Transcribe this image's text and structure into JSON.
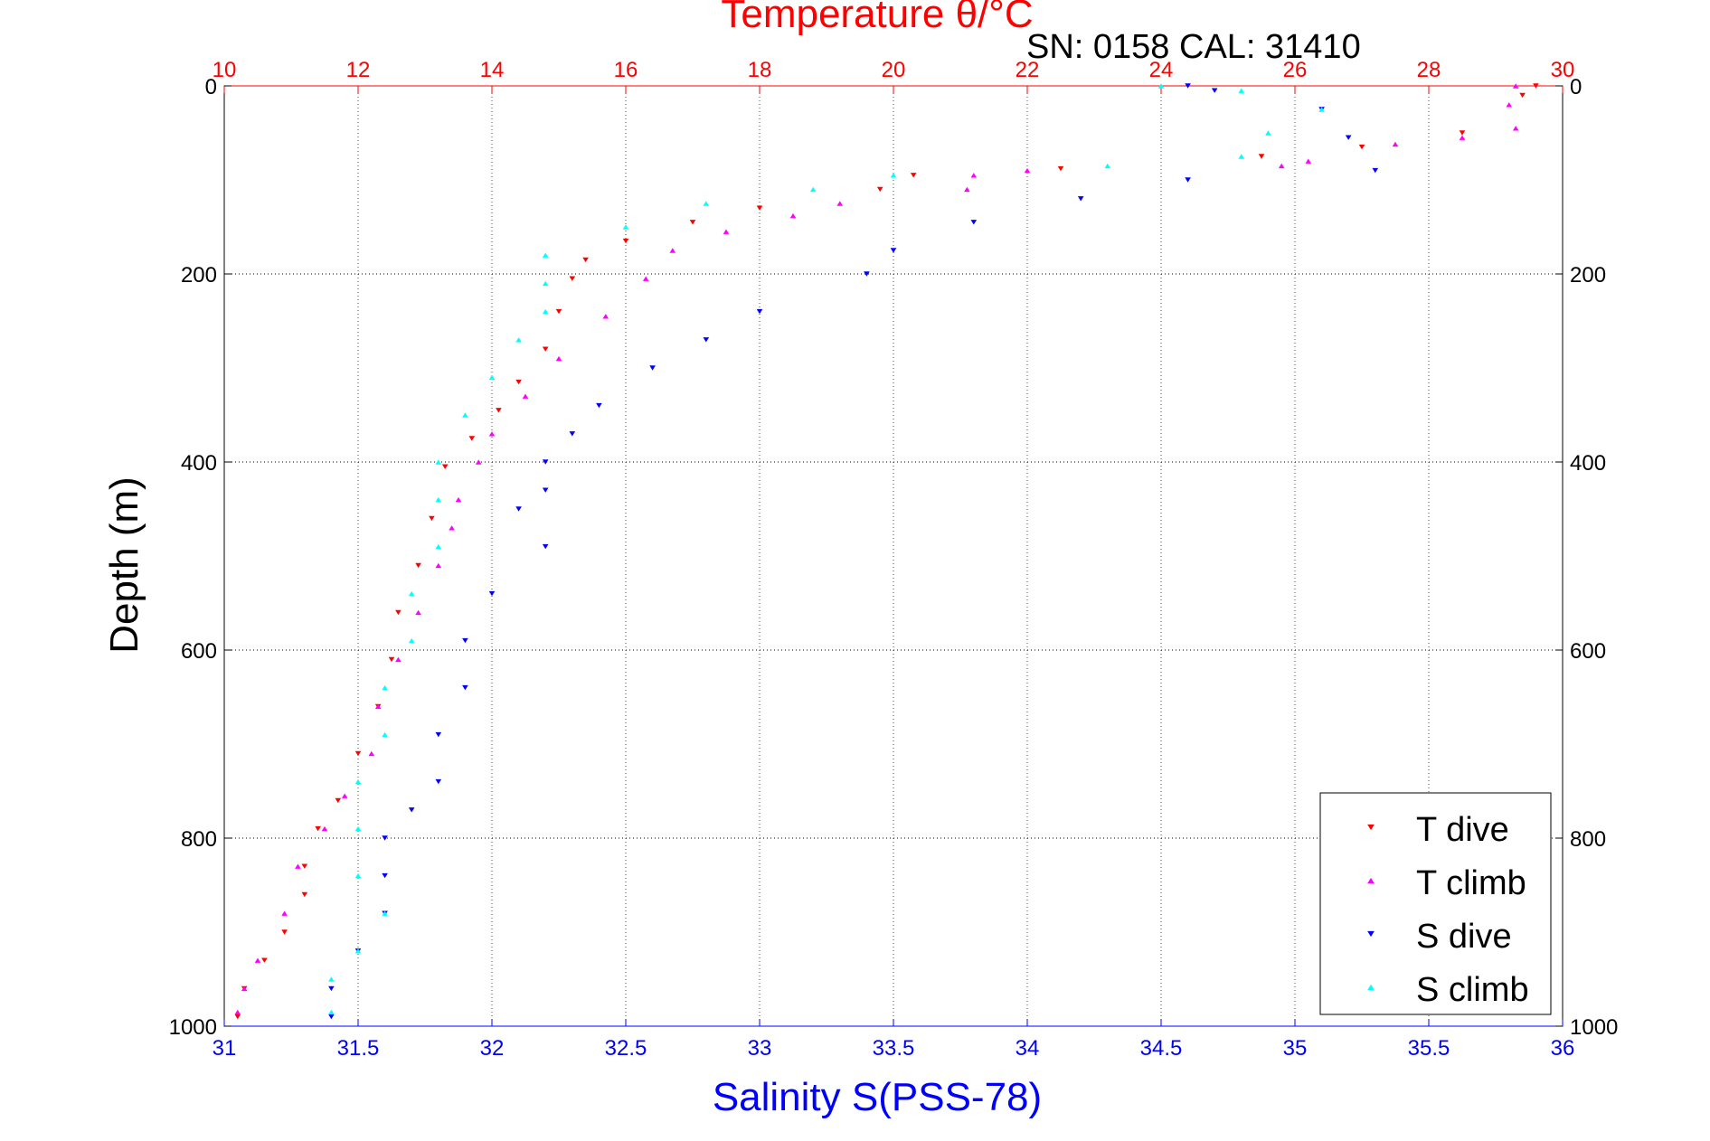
{
  "chart_data": {
    "type": "scatter",
    "title": "Temperature θ/°C",
    "annotation": "SN: 0158  CAL: 31410",
    "xlabel": "Salinity S(PSS-78)",
    "ylabel": "Depth (m)",
    "ylim": [
      1000,
      0
    ],
    "y_reversed": true,
    "xlim_bottom": [
      31,
      36
    ],
    "xlim_top": [
      10,
      30
    ],
    "grid": true,
    "legend_position": "bottom-right",
    "x_ticks_bottom": [
      "31",
      "31.5",
      "32",
      "32.5",
      "33",
      "33.5",
      "34",
      "34.5",
      "35",
      "35.5",
      "36"
    ],
    "x_ticks_top": [
      "10",
      "12",
      "14",
      "16",
      "18",
      "20",
      "22",
      "24",
      "26",
      "28",
      "30"
    ],
    "y_ticks": [
      "0",
      "200",
      "400",
      "600",
      "800",
      "1000"
    ],
    "y_ticks_right": [
      "0",
      "200",
      "400",
      "600",
      "800",
      "1000"
    ],
    "series": [
      {
        "name": "T dive",
        "axis": "top",
        "marker": "triangle-down",
        "color": "#ff0000",
        "points": [
          [
            29.6,
            0
          ],
          [
            29.4,
            10
          ],
          [
            28.5,
            50
          ],
          [
            27.0,
            65
          ],
          [
            25.5,
            75
          ],
          [
            22.5,
            88
          ],
          [
            20.3,
            95
          ],
          [
            19.8,
            110
          ],
          [
            18.0,
            130
          ],
          [
            17.0,
            145
          ],
          [
            16.0,
            165
          ],
          [
            15.4,
            185
          ],
          [
            15.2,
            205
          ],
          [
            15.0,
            240
          ],
          [
            14.8,
            280
          ],
          [
            14.4,
            315
          ],
          [
            14.1,
            345
          ],
          [
            13.7,
            375
          ],
          [
            13.3,
            405
          ],
          [
            13.1,
            460
          ],
          [
            12.9,
            510
          ],
          [
            12.6,
            560
          ],
          [
            12.5,
            610
          ],
          [
            12.3,
            660
          ],
          [
            12.0,
            710
          ],
          [
            11.7,
            760
          ],
          [
            11.4,
            790
          ],
          [
            11.2,
            830
          ],
          [
            11.2,
            860
          ],
          [
            10.9,
            900
          ],
          [
            10.6,
            930
          ],
          [
            10.3,
            960
          ],
          [
            10.2,
            990
          ]
        ]
      },
      {
        "name": "T climb",
        "axis": "top",
        "marker": "triangle-up",
        "color": "#ff00ff",
        "points": [
          [
            29.3,
            0
          ],
          [
            29.2,
            20
          ],
          [
            29.3,
            45
          ],
          [
            28.5,
            55
          ],
          [
            27.5,
            62
          ],
          [
            26.2,
            80
          ],
          [
            25.8,
            85
          ],
          [
            22.0,
            90
          ],
          [
            21.2,
            95
          ],
          [
            21.1,
            110
          ],
          [
            19.2,
            125
          ],
          [
            18.5,
            138
          ],
          [
            17.5,
            155
          ],
          [
            16.7,
            175
          ],
          [
            16.3,
            205
          ],
          [
            15.7,
            245
          ],
          [
            15.0,
            290
          ],
          [
            14.5,
            330
          ],
          [
            14.0,
            370
          ],
          [
            13.8,
            400
          ],
          [
            13.5,
            440
          ],
          [
            13.4,
            470
          ],
          [
            13.2,
            510
          ],
          [
            12.9,
            560
          ],
          [
            12.6,
            610
          ],
          [
            12.3,
            660
          ],
          [
            12.2,
            710
          ],
          [
            11.8,
            755
          ],
          [
            11.5,
            790
          ],
          [
            11.1,
            830
          ],
          [
            10.9,
            880
          ],
          [
            10.5,
            930
          ],
          [
            10.3,
            960
          ],
          [
            10.2,
            985
          ]
        ]
      },
      {
        "name": "S dive",
        "axis": "bottom",
        "marker": "triangle-down",
        "color": "#0000ff",
        "points": [
          [
            34.6,
            0
          ],
          [
            34.7,
            5
          ],
          [
            35.1,
            25
          ],
          [
            35.2,
            55
          ],
          [
            35.3,
            90
          ],
          [
            34.6,
            100
          ],
          [
            34.2,
            120
          ],
          [
            33.8,
            145
          ],
          [
            33.5,
            175
          ],
          [
            33.4,
            200
          ],
          [
            33.0,
            240
          ],
          [
            32.8,
            270
          ],
          [
            32.6,
            300
          ],
          [
            32.4,
            340
          ],
          [
            32.3,
            370
          ],
          [
            32.2,
            400
          ],
          [
            32.2,
            430
          ],
          [
            32.1,
            450
          ],
          [
            32.2,
            490
          ],
          [
            32.0,
            540
          ],
          [
            31.9,
            590
          ],
          [
            31.9,
            640
          ],
          [
            31.8,
            690
          ],
          [
            31.8,
            740
          ],
          [
            31.7,
            770
          ],
          [
            31.6,
            800
          ],
          [
            31.6,
            840
          ],
          [
            31.6,
            880
          ],
          [
            31.5,
            920
          ],
          [
            31.4,
            960
          ],
          [
            31.4,
            990
          ]
        ]
      },
      {
        "name": "S climb",
        "axis": "bottom",
        "marker": "triangle-up",
        "color": "#00ffff",
        "points": [
          [
            34.5,
            0
          ],
          [
            34.8,
            5
          ],
          [
            35.1,
            25
          ],
          [
            34.9,
            50
          ],
          [
            34.8,
            75
          ],
          [
            34.3,
            85
          ],
          [
            33.5,
            95
          ],
          [
            33.2,
            110
          ],
          [
            32.8,
            125
          ],
          [
            32.5,
            150
          ],
          [
            32.2,
            180
          ],
          [
            32.2,
            210
          ],
          [
            32.2,
            240
          ],
          [
            32.1,
            270
          ],
          [
            32.0,
            310
          ],
          [
            31.9,
            350
          ],
          [
            31.8,
            400
          ],
          [
            31.8,
            440
          ],
          [
            31.8,
            490
          ],
          [
            31.7,
            540
          ],
          [
            31.7,
            590
          ],
          [
            31.6,
            640
          ],
          [
            31.6,
            690
          ],
          [
            31.5,
            740
          ],
          [
            31.5,
            790
          ],
          [
            31.5,
            840
          ],
          [
            31.6,
            880
          ],
          [
            31.5,
            920
          ],
          [
            31.4,
            950
          ],
          [
            31.4,
            985
          ]
        ]
      }
    ]
  }
}
